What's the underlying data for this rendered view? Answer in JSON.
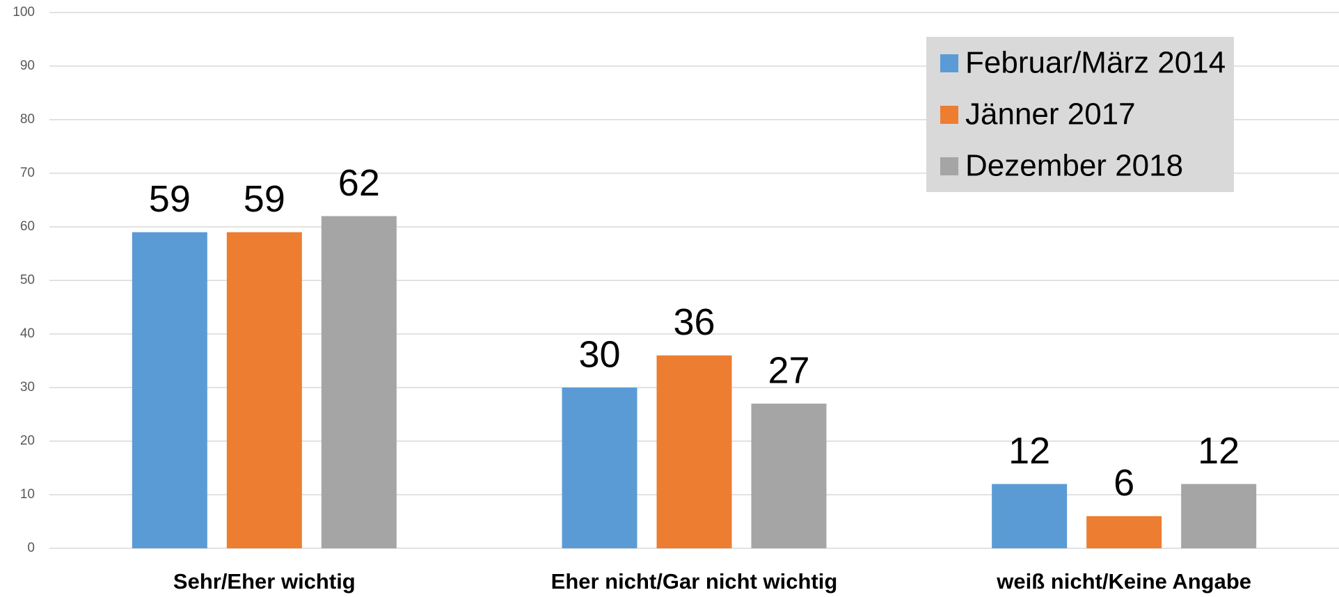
{
  "chart_data": {
    "type": "bar",
    "categories": [
      "Sehr/Eher wichtig",
      "Eher nicht/Gar nicht wichtig",
      "weiß nicht/Keine Angabe"
    ],
    "series": [
      {
        "name": "Februar/März 2014",
        "color": "#5b9bd5",
        "values": [
          59,
          30,
          12
        ]
      },
      {
        "name": "Jänner 2017",
        "color": "#ed7d31",
        "values": [
          59,
          36,
          6
        ]
      },
      {
        "name": "Dezember 2018",
        "color": "#a5a5a5",
        "values": [
          62,
          27,
          12
        ]
      }
    ],
    "ylim": [
      0,
      100
    ],
    "yticks": [
      0,
      10,
      20,
      30,
      40,
      50,
      60,
      70,
      80,
      90,
      100
    ],
    "grid": true,
    "legend": "top-right"
  }
}
